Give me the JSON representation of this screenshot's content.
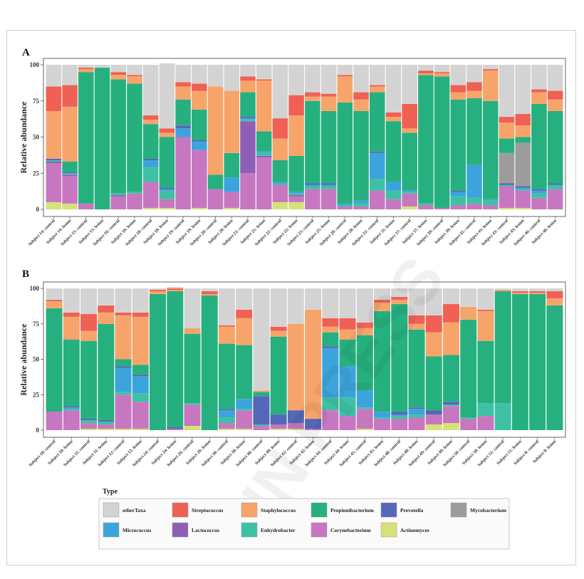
{
  "chart_data": [
    {
      "panel": "A",
      "type": "bar",
      "stacked": true,
      "ylabel": "Relative abundance",
      "ylim": [
        0,
        100
      ],
      "yticks": [
        0,
        25,
        50,
        75,
        100
      ],
      "categories": [
        "Subject 14: control",
        "Subject 14: lesion",
        "Subject 15: control",
        "Subject 15: lesion",
        "Subject 16: control",
        "Subject 16: lesion",
        "Subject 18: control",
        "Subject 18: lesion",
        "Subject 19: control",
        "Subject 19: lesion",
        "Subject 20: control",
        "Subject 20: lesion",
        "Subject 21: control",
        "Subject 21: lesion",
        "Subject 22: control",
        "Subject 22: lesion",
        "Subject 25: control",
        "Subject 25: lesion",
        "Subject 28: control",
        "Subject 28: lesion",
        "Subject 31: control",
        "Subject 31: lesion",
        "Subject 37: control",
        "Subject 37: lesion",
        "Subject 39: control",
        "Subject 39: lesion",
        "Subject 41: control",
        "Subject 41: lesion",
        "Subject 43: control",
        "Subject 43: lesion",
        "Subject 46: control",
        "Subject 46: lesion"
      ],
      "stack_order": [
        "Actinomyces",
        "Corynebacterium",
        "Lactococcus",
        "Enhydrobacter",
        "Micrococcus",
        "Prevotella",
        "Mycobacterium",
        "Propionibacterium",
        "Staphylococcus",
        "Streptococcus",
        "otherTaxa"
      ],
      "series": [
        {
          "name": "Actinomyces",
          "values": [
            5,
            4,
            0,
            0,
            0,
            0,
            1,
            1,
            0,
            1,
            0,
            1,
            0,
            0,
            5,
            5,
            0,
            0,
            0,
            0,
            0,
            0,
            2,
            0,
            0,
            0,
            0,
            0,
            1,
            1,
            0,
            0
          ]
        },
        {
          "name": "Corynebacterium",
          "values": [
            27,
            19,
            4,
            0,
            9,
            11,
            18,
            6,
            50,
            40,
            14,
            11,
            25,
            36,
            12,
            4,
            14,
            14,
            2,
            2,
            13,
            7,
            9,
            3,
            1,
            3,
            4,
            3,
            15,
            12,
            8,
            14
          ]
        },
        {
          "name": "Lactococcus",
          "values": [
            1,
            1,
            0,
            0,
            1,
            0,
            0,
            0,
            0,
            0,
            0,
            0,
            36,
            1,
            0,
            1,
            0,
            0,
            0,
            0,
            0,
            0,
            0,
            0,
            0,
            0,
            0,
            0,
            0,
            0,
            0,
            0
          ]
        },
        {
          "name": "Enhydrobacter",
          "values": [
            1,
            1,
            0,
            0,
            1,
            1,
            10,
            6,
            0,
            0,
            0,
            0,
            1,
            2,
            1,
            1,
            2,
            2,
            1,
            2,
            8,
            6,
            1,
            1,
            0,
            6,
            4,
            3,
            1,
            1,
            3,
            3
          ]
        },
        {
          "name": "Micrococcus",
          "values": [
            0,
            0,
            0,
            0,
            0,
            0,
            5,
            1,
            6,
            6,
            0,
            10,
            1,
            1,
            1,
            1,
            1,
            1,
            1,
            2,
            18,
            6,
            1,
            0,
            0,
            3,
            23,
            1,
            0,
            1,
            2,
            0
          ]
        },
        {
          "name": "Prevotella",
          "values": [
            1,
            1,
            0,
            0,
            0,
            0,
            1,
            1,
            2,
            1,
            0,
            0,
            1,
            0,
            0,
            0,
            1,
            1,
            0,
            0,
            1,
            0,
            0,
            0,
            0,
            1,
            0,
            0,
            1,
            1,
            1,
            1
          ]
        },
        {
          "name": "Mycobacterium",
          "values": [
            0,
            0,
            0,
            0,
            0,
            0,
            0,
            0,
            0,
            0,
            0,
            0,
            0,
            0,
            0,
            0,
            0,
            0,
            0,
            0,
            0,
            0,
            0,
            0,
            0,
            0,
            0,
            0,
            21,
            30,
            0,
            0
          ]
        },
        {
          "name": "Propionibacterium",
          "values": [
            0,
            7,
            91,
            98,
            79,
            75,
            24,
            35,
            18,
            21,
            10,
            17,
            17,
            14,
            15,
            25,
            57,
            50,
            70,
            62,
            41,
            42,
            40,
            89,
            91,
            63,
            46,
            68,
            10,
            4,
            59,
            50
          ]
        },
        {
          "name": "Staphylococcus",
          "values": [
            33,
            38,
            2,
            0,
            3,
            5,
            3,
            3,
            9,
            13,
            61,
            43,
            8,
            35,
            15,
            28,
            3,
            10,
            18,
            8,
            4,
            3,
            3,
            1,
            2,
            5,
            5,
            21,
            11,
            8,
            8,
            8
          ]
        },
        {
          "name": "Streptococcus",
          "values": [
            17,
            15,
            1,
            0,
            2,
            1,
            3,
            3,
            3,
            5,
            0,
            0,
            3,
            1,
            14,
            14,
            3,
            2,
            1,
            5,
            1,
            3,
            17,
            2,
            1,
            5,
            6,
            1,
            4,
            8,
            2,
            6
          ]
        },
        {
          "name": "otherTaxa",
          "values": [
            15,
            14,
            2,
            2,
            5,
            7,
            35,
            45,
            12,
            13,
            15,
            18,
            8,
            10,
            37,
            21,
            19,
            20,
            7,
            19,
            14,
            33,
            27,
            4,
            5,
            14,
            12,
            3,
            36,
            34,
            17,
            18
          ]
        }
      ]
    },
    {
      "panel": "B",
      "type": "bar",
      "stacked": true,
      "ylabel": "Relative abundance",
      "ylim": [
        0,
        100
      ],
      "yticks": [
        0,
        25,
        50,
        75,
        100
      ],
      "categories": [
        "Subject 10: control",
        "Subject 10: lesion",
        "Subject 11: control",
        "Subject 11: lesion",
        "Subject 12: control",
        "Subject 12: lesion",
        "Subject 24: control",
        "Subject 24: lesion",
        "Subject 26: control",
        "Subject 26: lesion",
        "Subject 30: control",
        "Subject 30: lesion",
        "Subject 40: control",
        "Subject 40: lesion",
        "Subject 42: control",
        "Subject 42: lesion",
        "Subject 44: control",
        "Subject 44: lesion",
        "Subject 45: control",
        "Subject 45: lesion",
        "Subject 48: control",
        "Subject 48: lesion",
        "Subject 49: control",
        "Subject 49: lesion",
        "Subject 50: control",
        "Subject 50: lesion",
        "Subject 51: control",
        "Subject 51: lesion",
        "Subject 8: control",
        "Subject 8: lesion"
      ],
      "stack_order": [
        "Actinomyces",
        "Corynebacterium",
        "Lactococcus",
        "Enhydrobacter",
        "Micrococcus",
        "Prevotella",
        "Mycobacterium",
        "Propionibacterium",
        "Staphylococcus",
        "Streptococcus",
        "otherTaxa"
      ],
      "series": [
        {
          "name": "Actinomyces",
          "values": [
            0,
            0,
            1,
            1,
            1,
            1,
            0,
            0,
            3,
            0,
            1,
            1,
            0,
            1,
            1,
            0,
            0,
            0,
            1,
            0,
            0,
            0,
            4,
            5,
            0,
            0,
            0,
            0,
            0,
            0
          ]
        },
        {
          "name": "Corynebacterium",
          "values": [
            13,
            14,
            4,
            3,
            24,
            19,
            0,
            1,
            15,
            0,
            4,
            13,
            3,
            3,
            4,
            1,
            14,
            10,
            14,
            8,
            8,
            9,
            7,
            12,
            8,
            10,
            0,
            0,
            0,
            0
          ]
        },
        {
          "name": "Lactococcus",
          "values": [
            0,
            0,
            0,
            0,
            0,
            0,
            0,
            0,
            0,
            0,
            0,
            0,
            0,
            0,
            0,
            0,
            0,
            0,
            0,
            0,
            0,
            0,
            0,
            0,
            0,
            0,
            0,
            0,
            0,
            0
          ]
        },
        {
          "name": "Enhydrobacter",
          "values": [
            0,
            1,
            2,
            2,
            2,
            6,
            0,
            0,
            1,
            0,
            4,
            1,
            1,
            0,
            0,
            0,
            9,
            13,
            1,
            1,
            2,
            2,
            0,
            1,
            1,
            9,
            19,
            0,
            0,
            0
          ]
        },
        {
          "name": "Micrococcus",
          "values": [
            0,
            1,
            0,
            0,
            17,
            12,
            0,
            0,
            0,
            0,
            5,
            7,
            0,
            0,
            0,
            0,
            35,
            22,
            12,
            4,
            1,
            4,
            0,
            0,
            0,
            0,
            0,
            0,
            0,
            0
          ]
        },
        {
          "name": "Prevotella",
          "values": [
            0,
            1,
            1,
            1,
            1,
            1,
            0,
            1,
            0,
            0,
            1,
            0,
            20,
            7,
            9,
            7,
            1,
            0,
            0,
            0,
            2,
            1,
            3,
            2,
            0,
            0,
            0,
            0,
            0,
            0
          ]
        },
        {
          "name": "Mycobacterium",
          "values": [
            0,
            0,
            0,
            0,
            0,
            0,
            0,
            0,
            0,
            0,
            0,
            0,
            0,
            0,
            0,
            0,
            0,
            0,
            0,
            0,
            0,
            0,
            0,
            0,
            0,
            0,
            0,
            0,
            0,
            0
          ]
        },
        {
          "name": "Propionibacterium",
          "values": [
            73,
            47,
            55,
            68,
            5,
            7,
            96,
            96,
            49,
            95,
            46,
            38,
            3,
            55,
            0,
            0,
            10,
            19,
            39,
            71,
            76,
            55,
            38,
            33,
            69,
            44,
            79,
            96,
            96,
            88
          ]
        },
        {
          "name": "Staphylococcus",
          "values": [
            5,
            16,
            7,
            8,
            31,
            34,
            2,
            1,
            4,
            1,
            12,
            19,
            1,
            4,
            61,
            77,
            4,
            7,
            5,
            6,
            3,
            4,
            17,
            23,
            9,
            21,
            1,
            1,
            1,
            5
          ]
        },
        {
          "name": "Streptococcus",
          "values": [
            1,
            3,
            12,
            5,
            2,
            3,
            1,
            1,
            0,
            2,
            1,
            6,
            0,
            3,
            0,
            0,
            6,
            8,
            4,
            2,
            2,
            6,
            12,
            13,
            0,
            1,
            0,
            1,
            1,
            5
          ]
        },
        {
          "name": "otherTaxa",
          "values": [
            8,
            17,
            18,
            12,
            17,
            17,
            1,
            1,
            28,
            2,
            26,
            15,
            72,
            27,
            25,
            15,
            21,
            21,
            24,
            8,
            6,
            19,
            19,
            11,
            13,
            15,
            1,
            2,
            2,
            2
          ]
        }
      ]
    }
  ],
  "legend": {
    "title": "Type",
    "items": [
      {
        "name": "otherTaxa",
        "color": "#d3d3d3"
      },
      {
        "name": "Streptococcus",
        "color": "#ef6155"
      },
      {
        "name": "Staphylococcus",
        "color": "#f7a46a"
      },
      {
        "name": "Propionibacterium",
        "color": "#27b07f"
      },
      {
        "name": "Prevotella",
        "color": "#5567b8"
      },
      {
        "name": "Mycobacterium",
        "color": "#9c9c9c"
      },
      {
        "name": "Micrococcus",
        "color": "#3ca4dd"
      },
      {
        "name": "Lactococcus",
        "color": "#8f5fb5"
      },
      {
        "name": "Enhydrobacter",
        "color": "#3ec1a3"
      },
      {
        "name": "Corynebacterium",
        "color": "#c677c0"
      },
      {
        "name": "Actinomyces",
        "color": "#d7e17a"
      }
    ]
  }
}
